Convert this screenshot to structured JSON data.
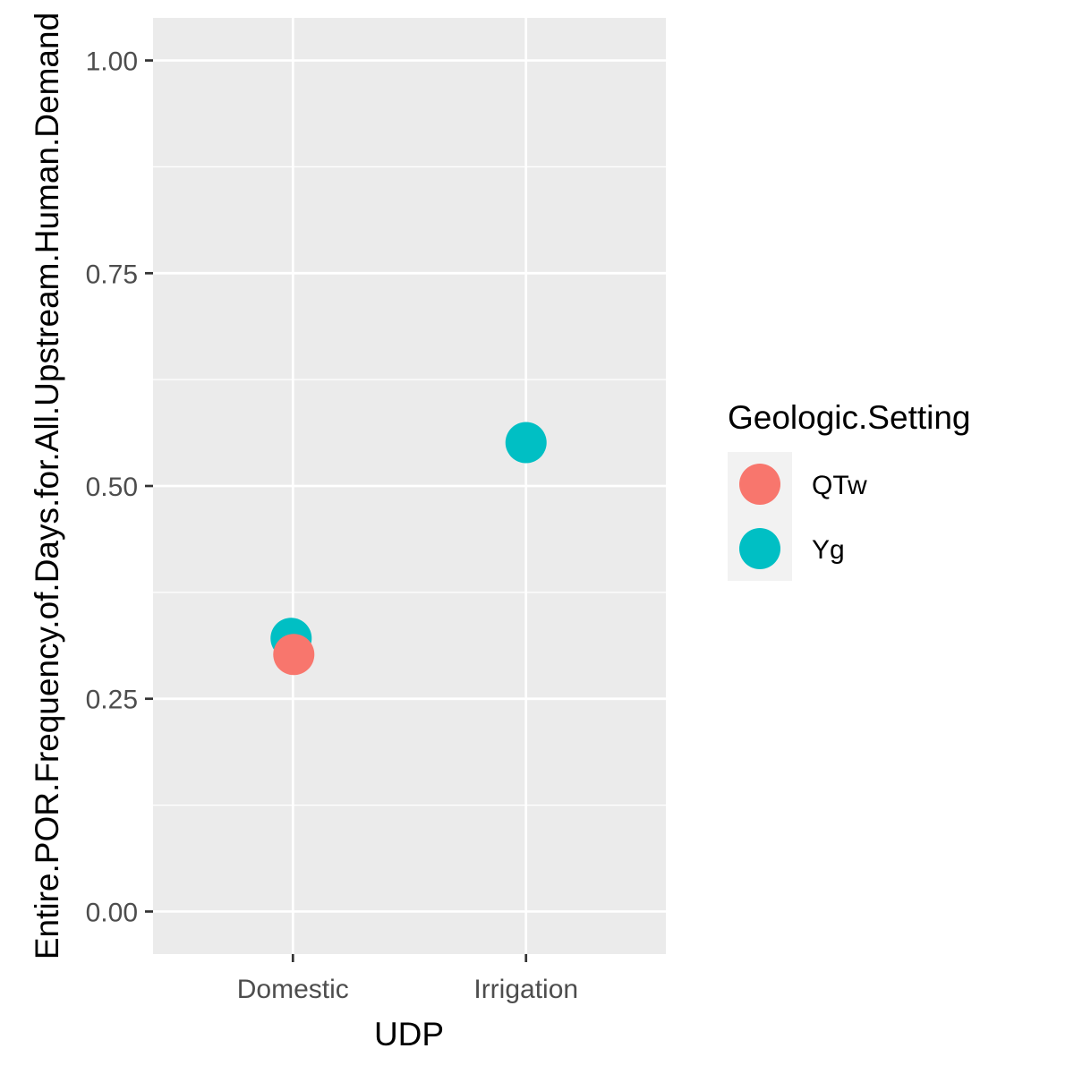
{
  "chart_data": {
    "type": "scatter",
    "xlabel": "UDP",
    "ylabel": "Entire.POR.Frequency.of.Days.for.All.Upstream.Human.Demand",
    "categories": [
      "Domestic",
      "Irrigation"
    ],
    "ylim": [
      -0.05,
      1.05
    ],
    "yticks": [
      0.0,
      0.25,
      0.5,
      0.75,
      1.0
    ],
    "ytick_labels": [
      "0.00",
      "0.25",
      "0.50",
      "0.75",
      "1.00"
    ],
    "grid": true,
    "legend": {
      "title": "Geologic.Setting",
      "position": "right"
    },
    "series": [
      {
        "name": "QTw",
        "color": "#F8766D",
        "points": [
          {
            "x": "Domestic",
            "y": 0.302
          }
        ]
      },
      {
        "name": "Yg",
        "color": "#00BFC4",
        "points": [
          {
            "x": "Domestic",
            "y": 0.321
          },
          {
            "x": "Irrigation",
            "y": 0.551
          }
        ]
      }
    ],
    "draw_order": [
      {
        "series": 1,
        "point": 0
      },
      {
        "series": 1,
        "point": 1
      },
      {
        "series": 0,
        "point": 0
      }
    ]
  }
}
